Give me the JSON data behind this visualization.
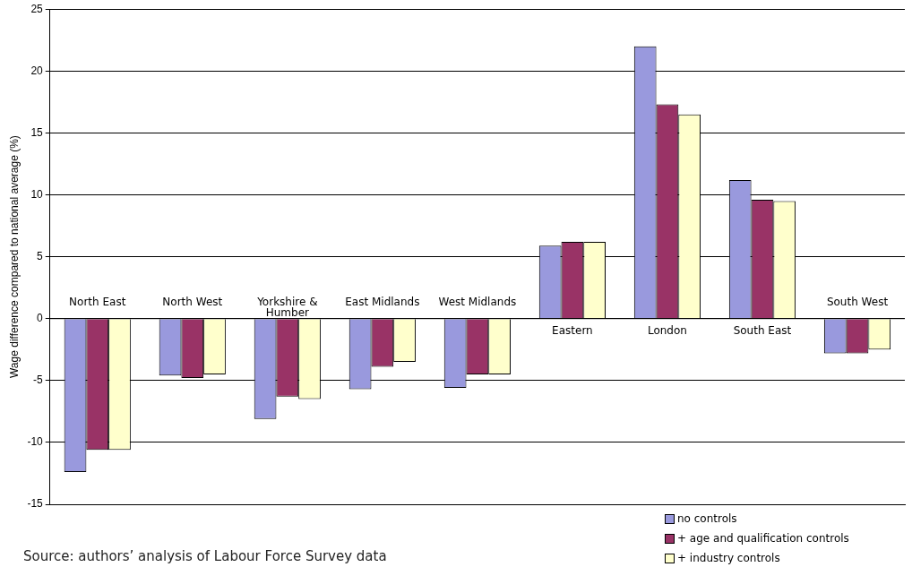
{
  "chart_data": {
    "type": "bar",
    "ylabel": "Wage difference compared to national average (%)",
    "categories": [
      "North East",
      "North West",
      "Yorkshire & Humber",
      "East Midlands",
      "West Midlands",
      "Eastern",
      "London",
      "South East",
      "South West"
    ],
    "series": [
      {
        "name": "no controls",
        "color": "#9999dd",
        "values": [
          -12.4,
          -4.6,
          -8.1,
          -5.7,
          -5.6,
          5.9,
          22.0,
          11.2,
          -2.8
        ]
      },
      {
        "name": "+ age and qualification controls",
        "color": "#993366",
        "values": [
          -10.6,
          -4.8,
          -6.3,
          -3.9,
          -4.5,
          6.2,
          17.3,
          9.6,
          -2.8
        ]
      },
      {
        "name": "+ industry controls",
        "color": "#ffffcc",
        "values": [
          -10.6,
          -4.5,
          -6.5,
          -3.5,
          -4.5,
          6.2,
          16.5,
          9.5,
          -2.5
        ]
      }
    ],
    "ylim": [
      -15,
      25
    ],
    "yticks": [
      -15,
      -10,
      -5,
      0,
      5,
      10,
      15,
      20,
      25
    ],
    "grid": "y",
    "legend": "bottom right",
    "annotations": [
      "Source: authors’ analysis of Labour Force Survey data"
    ]
  }
}
